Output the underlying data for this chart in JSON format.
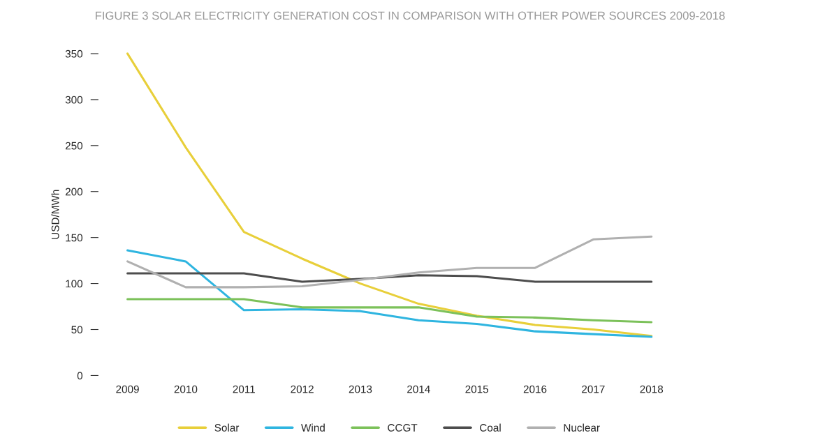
{
  "chart_data": {
    "type": "line",
    "title": "FIGURE 3 SOLAR ELECTRICITY GENERATION COST IN COMPARISON WITH OTHER POWER SOURCES 2009-2018",
    "ylabel": "USD/MWh",
    "categories": [
      "2009",
      "2010",
      "2011",
      "2012",
      "2013",
      "2014",
      "2015",
      "2016",
      "2017",
      "2018"
    ],
    "series": [
      {
        "name": "Solar",
        "color": "#e8cf3a",
        "values": [
          350,
          248,
          156,
          127,
          100,
          78,
          65,
          55,
          50,
          43
        ]
      },
      {
        "name": "Wind",
        "color": "#2fb5e0",
        "values": [
          136,
          124,
          71,
          72,
          70,
          60,
          56,
          48,
          45,
          42
        ]
      },
      {
        "name": "CCGT",
        "color": "#7cc15a",
        "values": [
          83,
          83,
          83,
          74,
          74,
          74,
          64,
          63,
          60,
          58
        ]
      },
      {
        "name": "Coal",
        "color": "#4d4d4d",
        "values": [
          111,
          111,
          111,
          102,
          105,
          109,
          108,
          102,
          102,
          102
        ]
      },
      {
        "name": "Nuclear",
        "color": "#b0b0b0",
        "values": [
          124,
          96,
          96,
          97,
          104,
          112,
          117,
          117,
          148,
          151
        ]
      }
    ],
    "ylim": [
      0,
      350
    ],
    "yticks": [
      0,
      50,
      100,
      150,
      200,
      250,
      300,
      350
    ],
    "grid": false,
    "legend": "bottom",
    "marker": "none",
    "line_style": "solid"
  }
}
